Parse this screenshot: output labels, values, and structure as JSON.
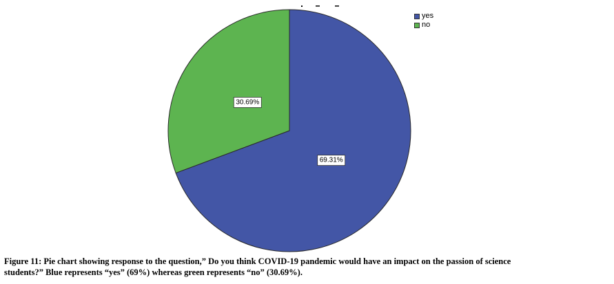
{
  "chart_data": {
    "type": "pie",
    "categories": [
      "yes",
      "no"
    ],
    "values": [
      69.31,
      30.69
    ],
    "labels": [
      "69.31%",
      "30.69%"
    ],
    "colors": [
      "#4356a6",
      "#5db450"
    ],
    "start_angle_deg": 0,
    "direction": "clockwise",
    "legend": {
      "position": "top-right",
      "entries": [
        "yes",
        "no"
      ]
    }
  },
  "caption": {
    "line1": "Figure 11: Pie chart showing response to the question,” Do you think COVID-19 pandemic would have an impact on the passion of science",
    "line2": "students?”  Blue represents “yes” (69%) whereas green represents “no” (30.69%)."
  }
}
